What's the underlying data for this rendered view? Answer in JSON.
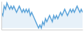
{
  "chart_data": {
    "type": "area",
    "values": [
      6,
      5,
      8,
      7,
      9,
      8,
      7,
      8,
      7,
      8,
      7,
      6,
      7,
      8,
      7,
      6,
      7,
      6,
      7,
      6,
      7,
      5,
      6,
      5,
      4,
      3,
      2,
      1,
      2,
      1,
      3,
      2,
      4,
      3,
      4,
      5,
      4,
      3,
      5,
      4,
      5,
      4,
      5,
      6,
      5,
      6,
      7,
      6,
      5,
      6,
      7,
      6,
      7,
      6,
      7,
      8,
      7,
      6,
      7,
      6
    ],
    "baseline": 1,
    "color": "#5ba3d9",
    "xlim": [
      0,
      59
    ],
    "ylim": [
      0.5,
      9.5
    ],
    "tick_labels": false,
    "grid": false
  }
}
